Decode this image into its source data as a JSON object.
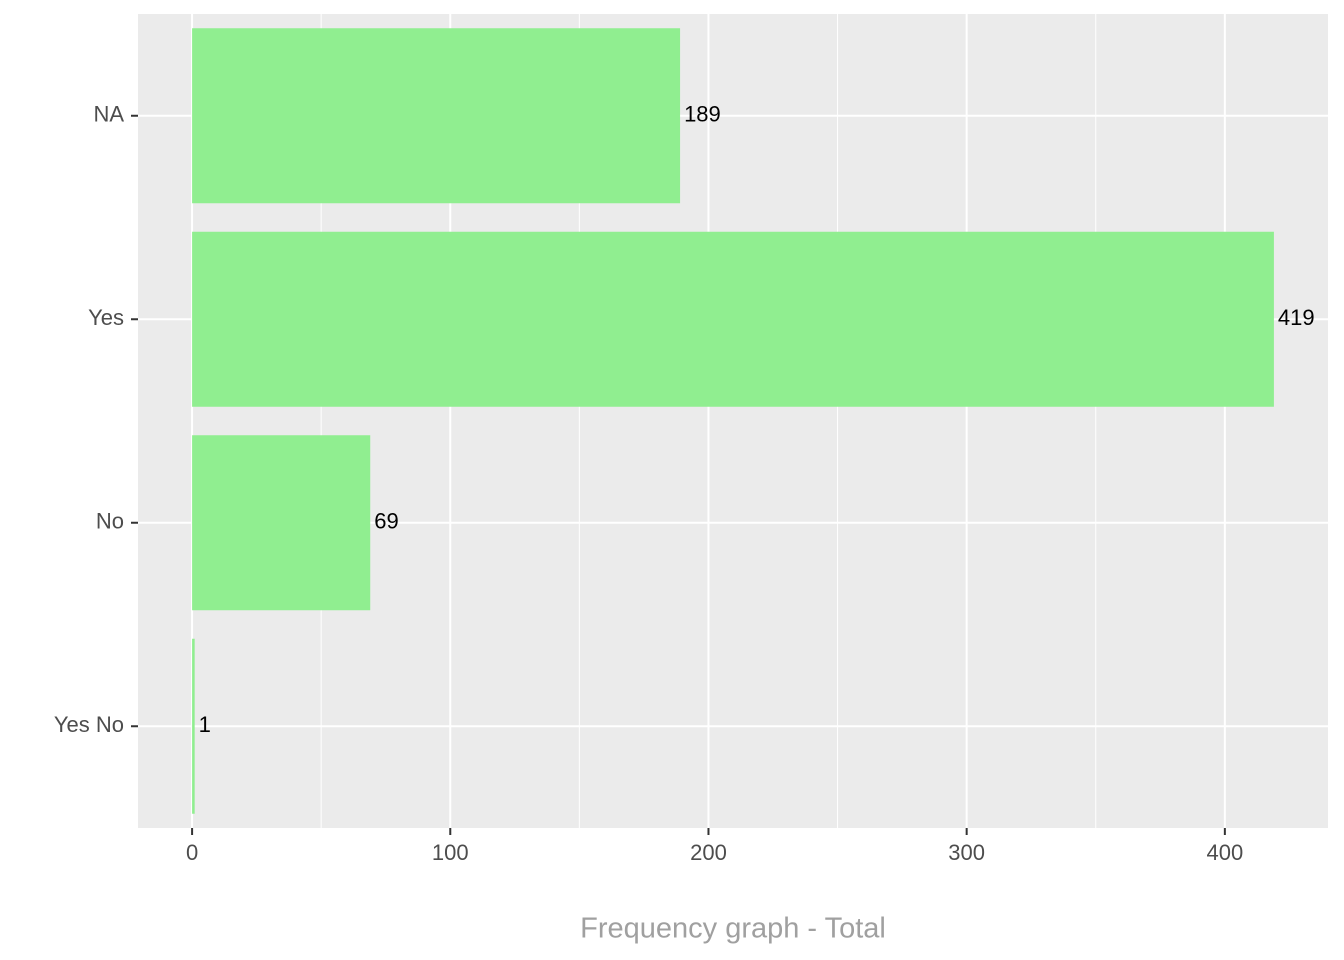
{
  "chart_data": {
    "type": "barh",
    "x_label": "Frequency graph - Total",
    "categories": [
      "NA",
      "Yes",
      "No",
      "Yes No"
    ],
    "values": [
      189,
      419,
      69,
      1
    ],
    "color": "#90ee90",
    "xlim": [
      -20.95,
      439.95
    ],
    "xticks": [
      0,
      100,
      200,
      300,
      400
    ],
    "x_minor_grid": [
      50,
      150,
      250,
      350
    ],
    "grid": true
  }
}
